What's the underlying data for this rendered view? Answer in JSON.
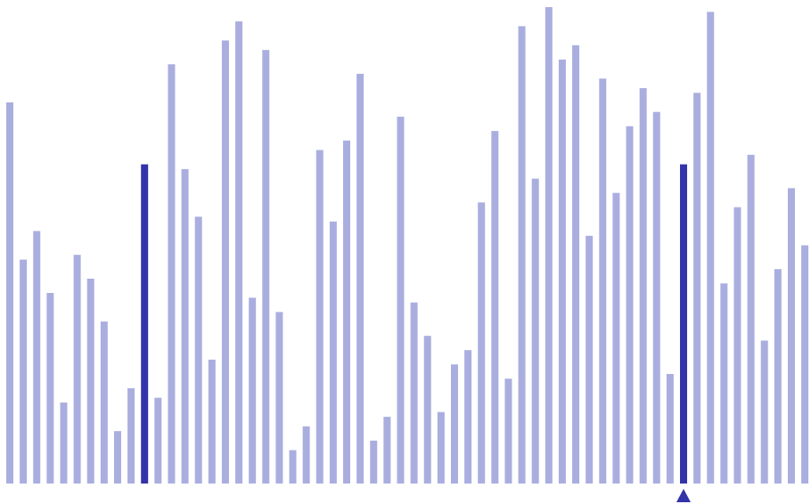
{
  "chart_data": {
    "type": "bar",
    "values": [
      0.8,
      0.47,
      0.53,
      0.4,
      0.17,
      0.48,
      0.43,
      0.34,
      0.11,
      0.2,
      0.67,
      0.18,
      0.88,
      0.66,
      0.56,
      0.26,
      0.93,
      0.97,
      0.39,
      0.91,
      0.36,
      0.07,
      0.12,
      0.7,
      0.55,
      0.72,
      0.86,
      0.09,
      0.14,
      0.77,
      0.38,
      0.31,
      0.15,
      0.25,
      0.28,
      0.59,
      0.74,
      0.22,
      0.96,
      0.64,
      1.0,
      0.89,
      0.92,
      0.52,
      0.85,
      0.61,
      0.75,
      0.83,
      0.78,
      0.23,
      0.67,
      0.82,
      0.99,
      0.42,
      0.58,
      0.69,
      0.3,
      0.45,
      0.62,
      0.5
    ],
    "highlighted_indices": [
      10,
      50
    ],
    "marker_index": 50,
    "colors": {
      "default_bar": "#aaaedf",
      "highlight_bar": "#3333aa",
      "marker": "#3333aa",
      "background": "#ffffff"
    }
  }
}
